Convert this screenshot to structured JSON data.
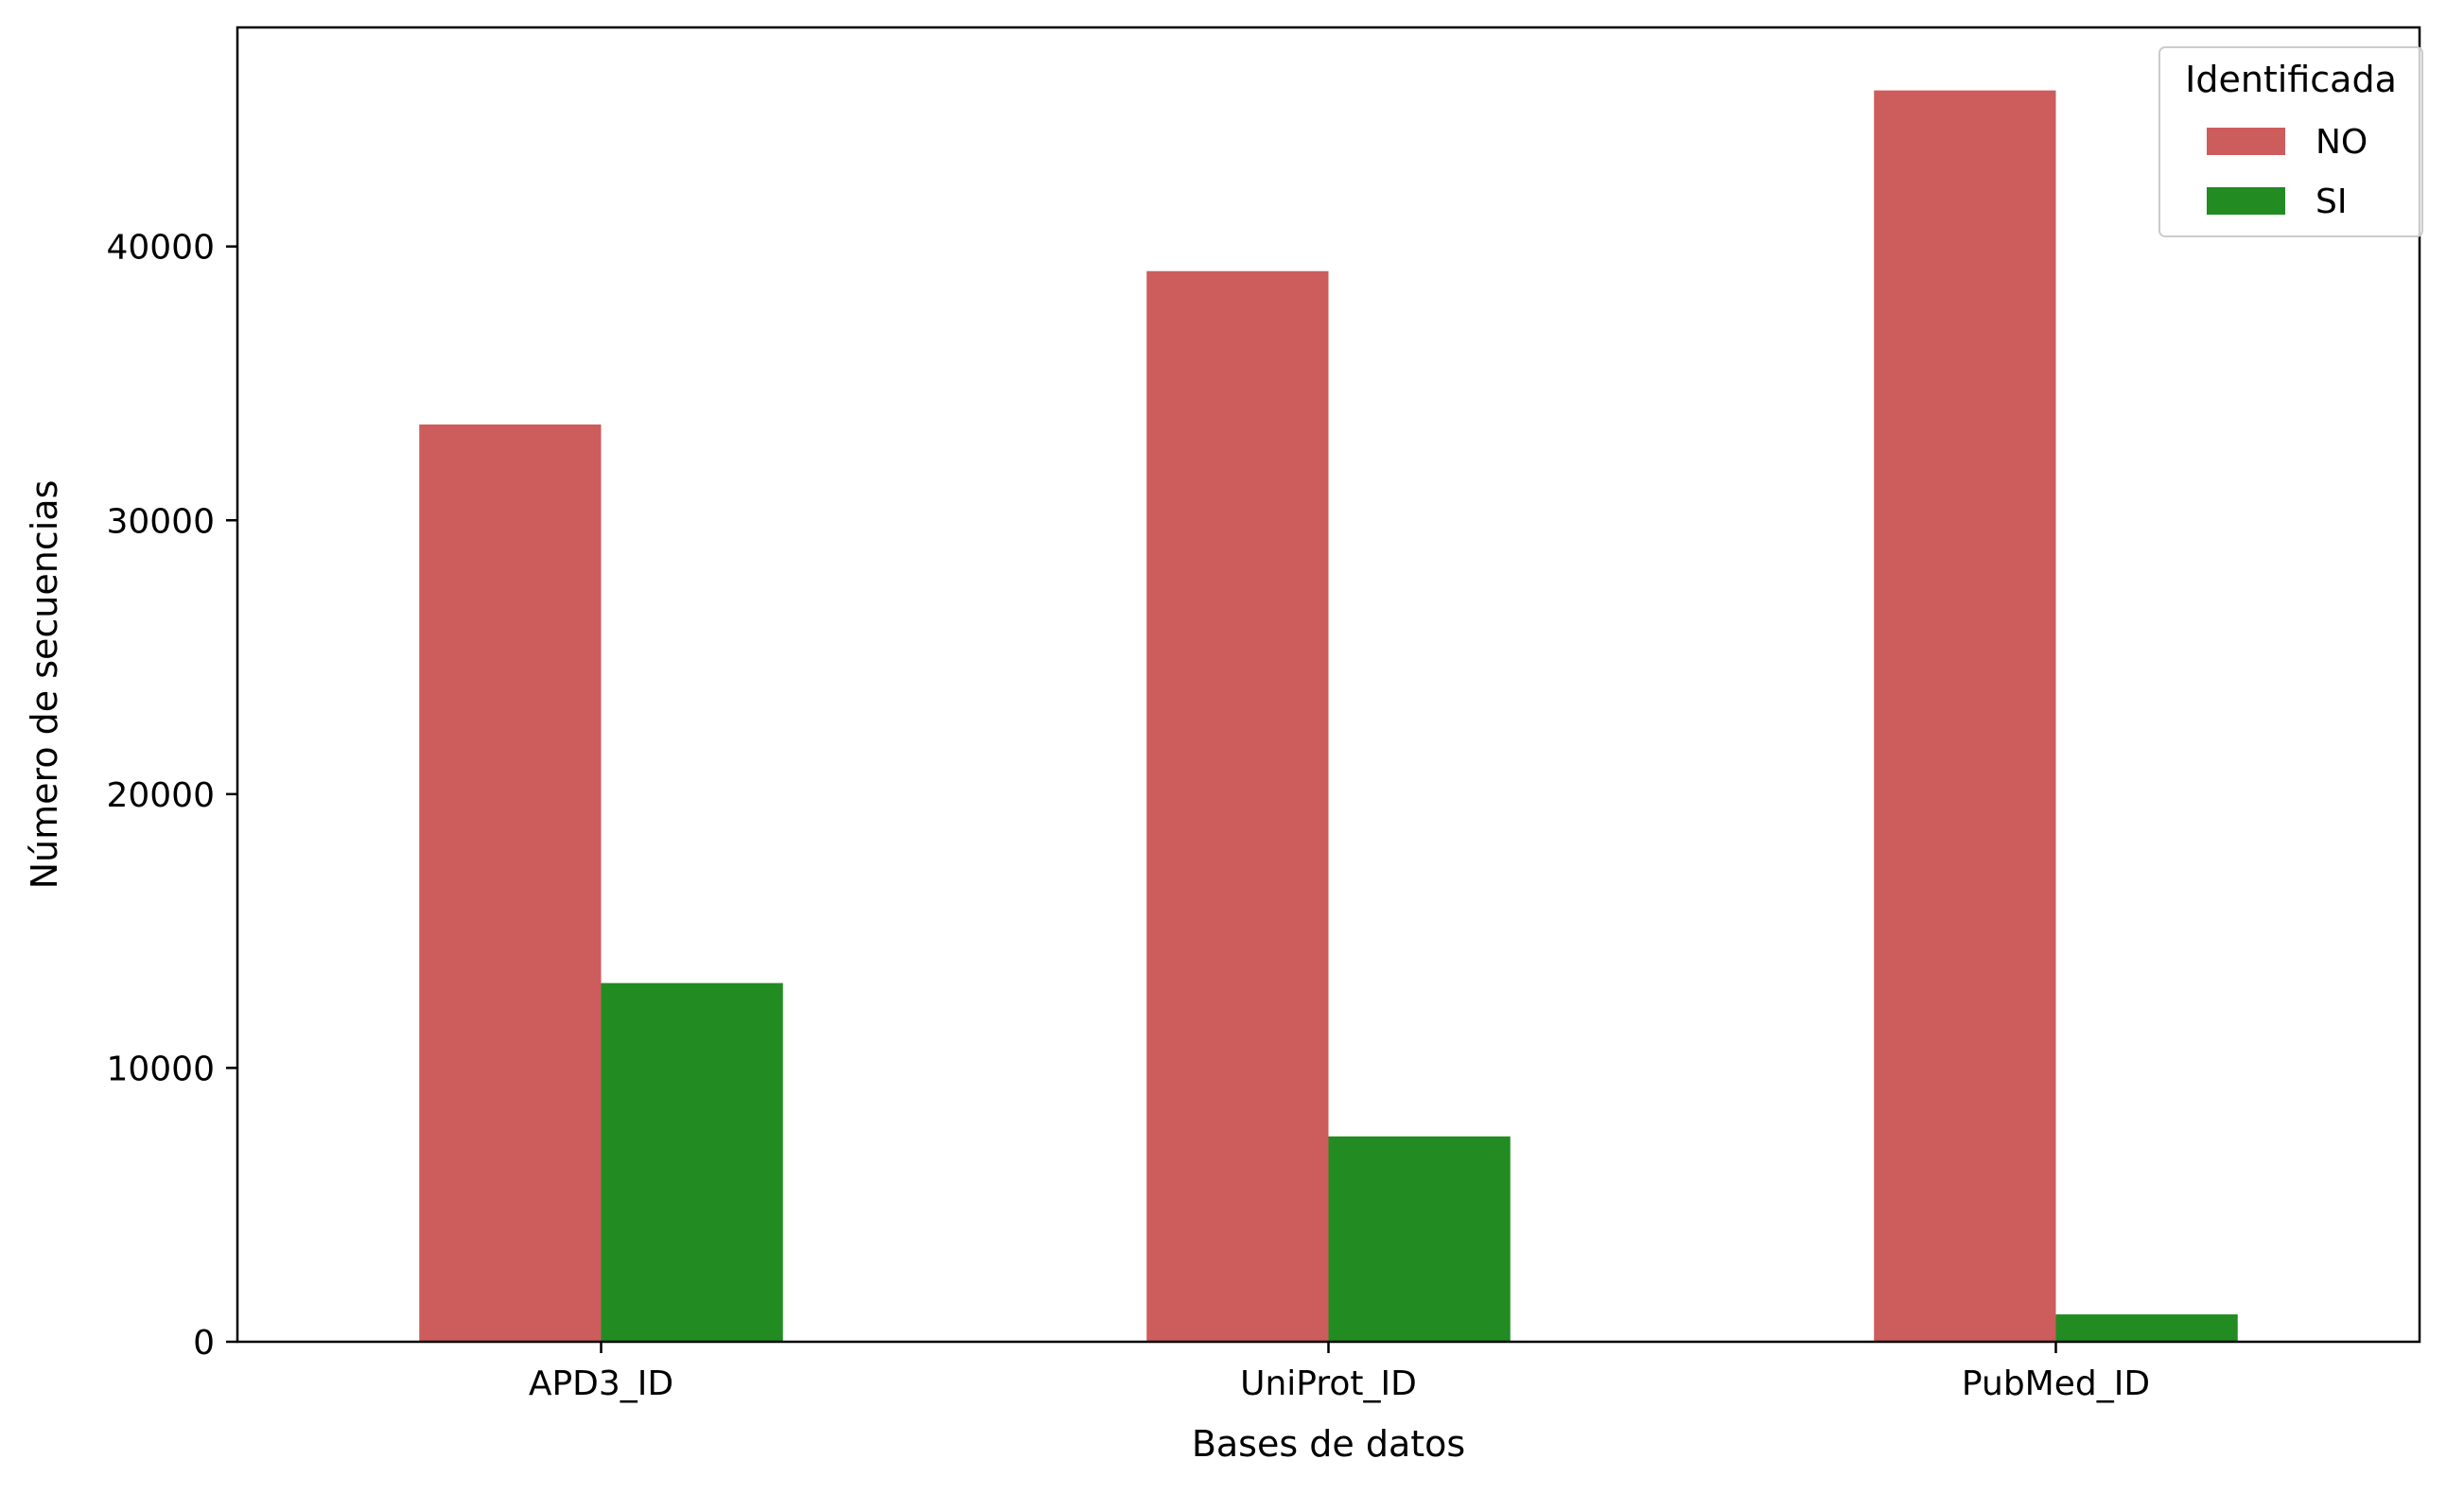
{
  "chart_data": {
    "type": "bar",
    "title": "",
    "xlabel": "Bases de datos",
    "ylabel": "Número de secuencias",
    "categories": [
      "APD3_ID",
      "UniProt_ID",
      "PubMed_ID"
    ],
    "series": [
      {
        "name": "NO",
        "values": [
          33500,
          39100,
          45700
        ],
        "color": "#cd5c5c"
      },
      {
        "name": "SI",
        "values": [
          13100,
          7500,
          1000
        ],
        "color": "#228b22"
      }
    ],
    "ylim": [
      0,
      48000
    ],
    "yticks": [
      0,
      10000,
      20000,
      30000,
      40000
    ],
    "legend": {
      "title": "Identificada",
      "position": "top-right"
    },
    "grid": false
  }
}
